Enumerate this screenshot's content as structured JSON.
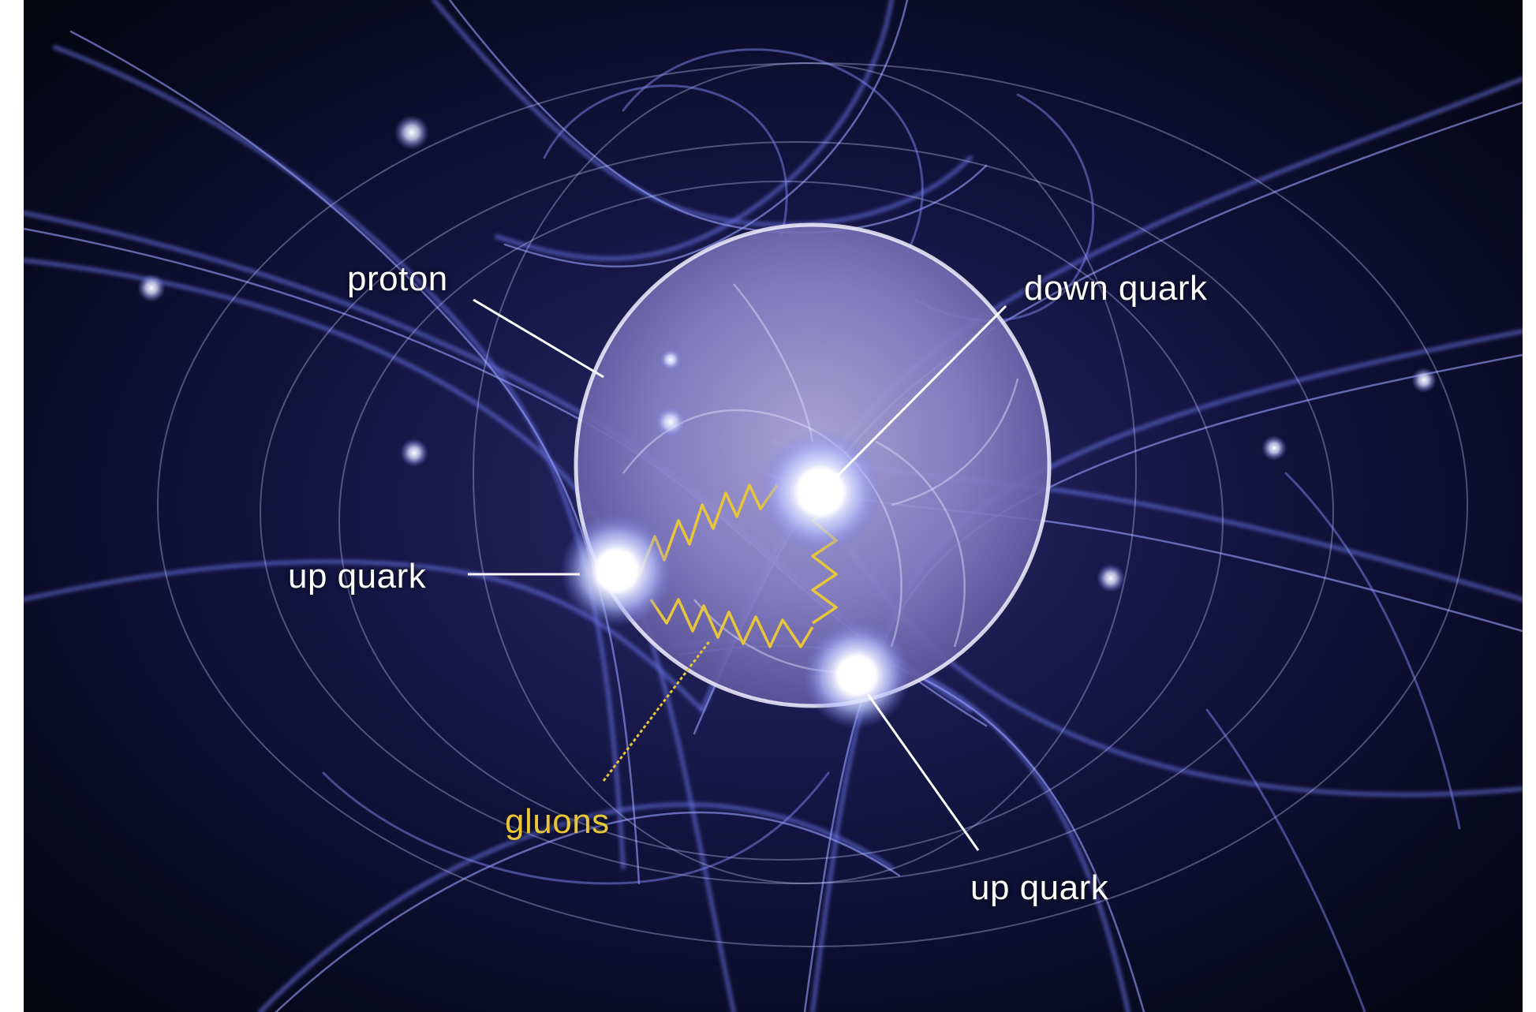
{
  "diagram": {
    "labels": {
      "proton": "proton",
      "down_quark": "down quark",
      "up_quark_left": "up quark",
      "up_quark_bottom": "up quark",
      "gluons": "gluons"
    },
    "colors": {
      "background": "#05071a",
      "field_lines": "#6a72e6",
      "proton_fill": "#8a83c4",
      "quark_glow": "#ffffff",
      "label_text": "#ffffff",
      "gluon": "#e8c63a"
    }
  }
}
